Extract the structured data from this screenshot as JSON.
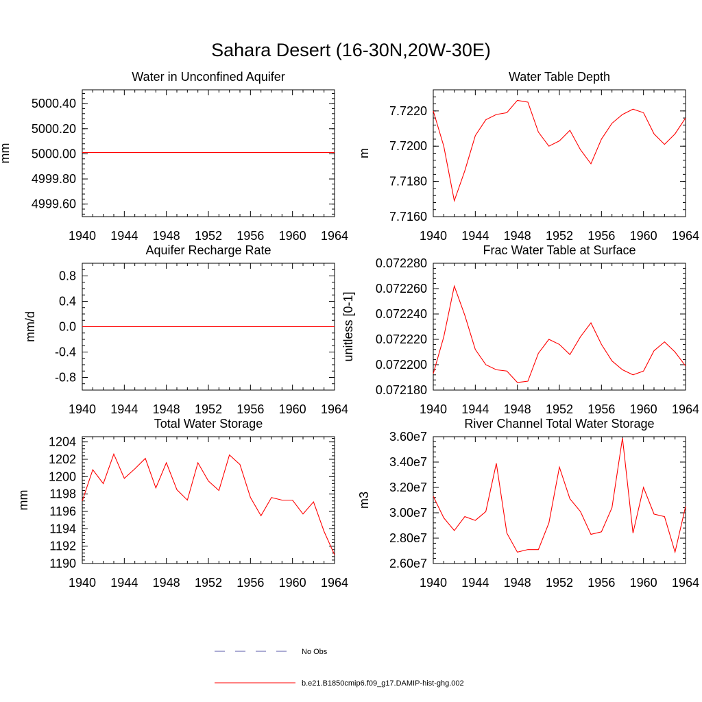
{
  "figure_title": "Sahara Desert (16-30N,20W-30E)",
  "legend": {
    "items": [
      {
        "label": "No Obs",
        "color": "#5a5aa8",
        "style": "dashed"
      },
      {
        "label": "b.e21.B1850cmip6.f09_g17.DAMIP-hist-ghg.002",
        "color": "#ff0000",
        "style": "solid"
      }
    ]
  },
  "chart_data": [
    {
      "type": "line",
      "title": "Water in Unconfined Aquifer",
      "ylabel": "mm",
      "x": [
        1940,
        1941,
        1942,
        1943,
        1944,
        1945,
        1946,
        1947,
        1948,
        1949,
        1950,
        1951,
        1952,
        1953,
        1954,
        1955,
        1956,
        1957,
        1958,
        1959,
        1960,
        1961,
        1962,
        1963,
        1964
      ],
      "xlim": [
        1940,
        1964
      ],
      "xticks": [
        "1940",
        "1944",
        "1948",
        "1952",
        "1956",
        "1960",
        "1964"
      ],
      "ylim": [
        4999.5,
        5000.51
      ],
      "yticks": [
        {
          "v": 4999.6,
          "label": "4999.60"
        },
        {
          "v": 4999.8,
          "label": "4999.80"
        },
        {
          "v": 5000.0,
          "label": "5000.00"
        },
        {
          "v": 5000.2,
          "label": "5000.20"
        },
        {
          "v": 5000.4,
          "label": "5000.40"
        }
      ],
      "minor_step": 0.04,
      "series": [
        {
          "color": "#ff0000",
          "values": [
            5000.01,
            5000.01,
            5000.01,
            5000.01,
            5000.01,
            5000.01,
            5000.01,
            5000.01,
            5000.01,
            5000.01,
            5000.01,
            5000.01,
            5000.01,
            5000.01,
            5000.01,
            5000.01,
            5000.01,
            5000.01,
            5000.01,
            5000.01,
            5000.01,
            5000.01,
            5000.01,
            5000.01,
            5000.01
          ]
        }
      ]
    },
    {
      "type": "line",
      "title": "Water Table Depth",
      "ylabel": "m",
      "x": [
        1940,
        1941,
        1942,
        1943,
        1944,
        1945,
        1946,
        1947,
        1948,
        1949,
        1950,
        1951,
        1952,
        1953,
        1954,
        1955,
        1956,
        1957,
        1958,
        1959,
        1960,
        1961,
        1962,
        1963,
        1964
      ],
      "xlim": [
        1940,
        1964
      ],
      "xticks": [
        "1940",
        "1944",
        "1948",
        "1952",
        "1956",
        "1960",
        "1964"
      ],
      "ylim": [
        7.716,
        7.7232
      ],
      "yticks": [
        {
          "v": 7.716,
          "label": "7.7160"
        },
        {
          "v": 7.718,
          "label": "7.7180"
        },
        {
          "v": 7.72,
          "label": "7.7200"
        },
        {
          "v": 7.722,
          "label": "7.7220"
        }
      ],
      "minor_step": 0.0004,
      "series": [
        {
          "color": "#ff0000",
          "values": [
            7.722,
            7.72,
            7.7169,
            7.7186,
            7.7206,
            7.7215,
            7.7218,
            7.7219,
            7.7226,
            7.7225,
            7.7208,
            7.72,
            7.7203,
            7.7209,
            7.7198,
            7.719,
            7.7204,
            7.7213,
            7.7218,
            7.7221,
            7.7219,
            7.7207,
            7.7201,
            7.7207,
            7.7216
          ]
        }
      ]
    },
    {
      "type": "line",
      "title": "Aquifer Recharge Rate",
      "ylabel": "mm/d",
      "x": [
        1940,
        1941,
        1942,
        1943,
        1944,
        1945,
        1946,
        1947,
        1948,
        1949,
        1950,
        1951,
        1952,
        1953,
        1954,
        1955,
        1956,
        1957,
        1958,
        1959,
        1960,
        1961,
        1962,
        1963,
        1964
      ],
      "xlim": [
        1940,
        1964
      ],
      "xticks": [
        "1940",
        "1944",
        "1948",
        "1952",
        "1956",
        "1960",
        "1964"
      ],
      "ylim": [
        -1.0,
        1.0
      ],
      "yticks": [
        {
          "v": -0.8,
          "label": "-0.8"
        },
        {
          "v": -0.4,
          "label": "-0.4"
        },
        {
          "v": 0.0,
          "label": "0.0"
        },
        {
          "v": 0.4,
          "label": "0.4"
        },
        {
          "v": 0.8,
          "label": "0.8"
        }
      ],
      "minor_step": 0.1,
      "series": [
        {
          "color": "#ff0000",
          "values": [
            0,
            0,
            0,
            0,
            0,
            0,
            0,
            0,
            0,
            0,
            0,
            0,
            0,
            0,
            0,
            0,
            0,
            0,
            0,
            0,
            0,
            0,
            0,
            0,
            0
          ]
        }
      ]
    },
    {
      "type": "line",
      "title": "Frac Water Table at Surface",
      "ylabel": "unitless [0-1]",
      "x": [
        1940,
        1941,
        1942,
        1943,
        1944,
        1945,
        1946,
        1947,
        1948,
        1949,
        1950,
        1951,
        1952,
        1953,
        1954,
        1955,
        1956,
        1957,
        1958,
        1959,
        1960,
        1961,
        1962,
        1963,
        1964
      ],
      "xlim": [
        1940,
        1964
      ],
      "xticks": [
        "1940",
        "1944",
        "1948",
        "1952",
        "1956",
        "1960",
        "1964"
      ],
      "ylim": [
        0.07218,
        0.07228
      ],
      "yticks": [
        {
          "v": 0.07218,
          "label": "0.072180"
        },
        {
          "v": 0.0722,
          "label": "0.072200"
        },
        {
          "v": 0.07222,
          "label": "0.072220"
        },
        {
          "v": 0.07224,
          "label": "0.072240"
        },
        {
          "v": 0.07226,
          "label": "0.072260"
        },
        {
          "v": 0.07228,
          "label": "0.072280"
        }
      ],
      "minor_step": 4e-06,
      "series": [
        {
          "color": "#ff0000",
          "values": [
            0.072193,
            0.072222,
            0.072262,
            0.072239,
            0.072212,
            0.0722,
            0.072196,
            0.072195,
            0.072186,
            0.072187,
            0.072209,
            0.07222,
            0.072216,
            0.072208,
            0.072222,
            0.072233,
            0.072216,
            0.072203,
            0.072196,
            0.072192,
            0.072195,
            0.072211,
            0.072218,
            0.07221,
            0.072199
          ]
        }
      ]
    },
    {
      "type": "line",
      "title": "Total Water Storage",
      "ylabel": "mm",
      "x": [
        1940,
        1941,
        1942,
        1943,
        1944,
        1945,
        1946,
        1947,
        1948,
        1949,
        1950,
        1951,
        1952,
        1953,
        1954,
        1955,
        1956,
        1957,
        1958,
        1959,
        1960,
        1961,
        1962,
        1963,
        1964
      ],
      "xlim": [
        1940,
        1964
      ],
      "xticks": [
        "1940",
        "1944",
        "1948",
        "1952",
        "1956",
        "1960",
        "1964"
      ],
      "ylim": [
        1190,
        1204.6
      ],
      "yticks": [
        {
          "v": 1190,
          "label": "1190"
        },
        {
          "v": 1192,
          "label": "1192"
        },
        {
          "v": 1194,
          "label": "1194"
        },
        {
          "v": 1196,
          "label": "1196"
        },
        {
          "v": 1198,
          "label": "1198"
        },
        {
          "v": 1200,
          "label": "1200"
        },
        {
          "v": 1202,
          "label": "1202"
        },
        {
          "v": 1204,
          "label": "1204"
        }
      ],
      "minor_step": 0.4,
      "series": [
        {
          "color": "#ff0000",
          "values": [
            1197.2,
            1200.8,
            1199.2,
            1202.6,
            1199.8,
            1200.9,
            1202.1,
            1198.7,
            1201.6,
            1198.5,
            1197.3,
            1201.6,
            1199.5,
            1198.4,
            1202.5,
            1201.4,
            1197.6,
            1195.5,
            1197.6,
            1197.3,
            1197.3,
            1195.7,
            1197.1,
            1193.7,
            1191.0
          ]
        }
      ]
    },
    {
      "type": "line",
      "title": "River Channel Total Water Storage",
      "ylabel": "m3",
      "x": [
        1940,
        1941,
        1942,
        1943,
        1944,
        1945,
        1946,
        1947,
        1948,
        1949,
        1950,
        1951,
        1952,
        1953,
        1954,
        1955,
        1956,
        1957,
        1958,
        1959,
        1960,
        1961,
        1962,
        1963,
        1964
      ],
      "xlim": [
        1940,
        1964
      ],
      "xticks": [
        "1940",
        "1944",
        "1948",
        "1952",
        "1956",
        "1960",
        "1964"
      ],
      "ylim": [
        26000000,
        36000000
      ],
      "yticks": [
        {
          "v": 26000000,
          "label": "2.60e7"
        },
        {
          "v": 28000000,
          "label": "2.80e7"
        },
        {
          "v": 30000000,
          "label": "3.00e7"
        },
        {
          "v": 32000000,
          "label": "3.20e7"
        },
        {
          "v": 34000000,
          "label": "3.40e7"
        },
        {
          "v": 36000000,
          "label": "3.60e7"
        }
      ],
      "minor_step": 400000,
      "series": [
        {
          "color": "#ff0000",
          "values": [
            31300000,
            29600000,
            28600000,
            29700000,
            29400000,
            30100000,
            33900000,
            28400000,
            26900000,
            27100000,
            27100000,
            29200000,
            33600000,
            31100000,
            30100000,
            28300000,
            28500000,
            30400000,
            35900000,
            28400000,
            32000000,
            29900000,
            29700000,
            26900000,
            30500000
          ]
        }
      ]
    }
  ]
}
